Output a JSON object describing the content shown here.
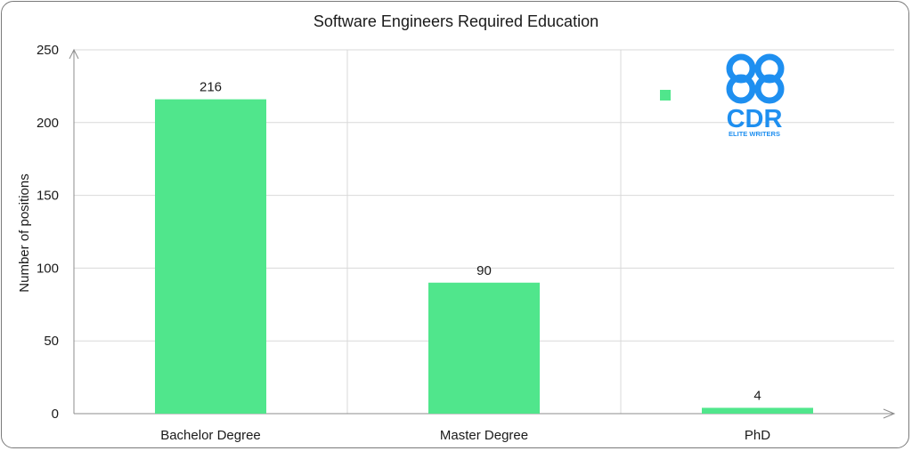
{
  "chart_data": {
    "type": "bar",
    "title": "Software Engineers Required Education",
    "xlabel": "",
    "ylabel": "Number of positions",
    "categories": [
      "Bachelor Degree",
      "Master Degree",
      "PhD"
    ],
    "values": [
      216,
      90,
      4
    ],
    "data_labels": [
      "216",
      "90",
      "4"
    ],
    "ylim": [
      0,
      250
    ],
    "yticks": [
      0,
      50,
      100,
      150,
      200,
      250
    ],
    "grid": true,
    "legend": "top-right",
    "colors": {
      "bar": "#50e68c",
      "grid": "#d9d9d9",
      "axis": "#8c8c8c"
    }
  },
  "logo": {
    "brand": "CDR",
    "tagline": "ELITE WRITERS",
    "color": "#1e8ff0"
  }
}
